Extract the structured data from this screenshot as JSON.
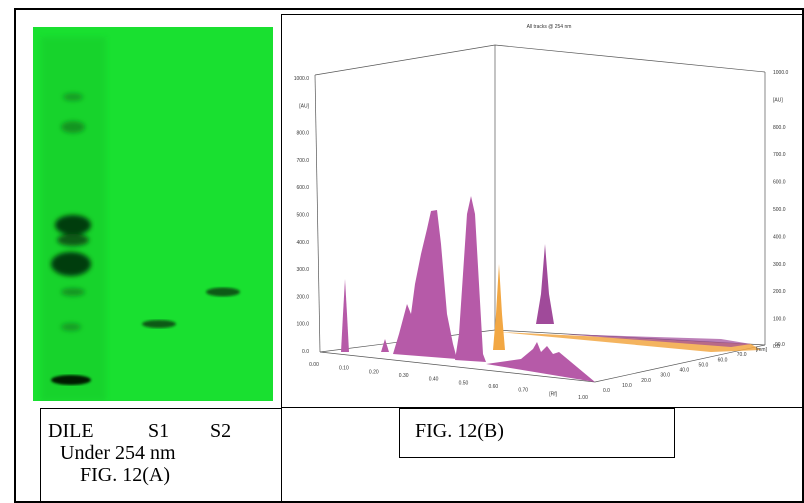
{
  "figure_a": {
    "lanes": [
      "DILE",
      "S1",
      "S2"
    ],
    "caption_lines": [
      "Under 254 nm",
      "FIG. 12(A)"
    ]
  },
  "figure_b": {
    "title": "All tracks @ 254 nm",
    "z_ticks_left": [
      "1000.0",
      "[AU]",
      "800.0",
      "700.0",
      "600.0",
      "500.0",
      "400.0",
      "300.0",
      "200.0",
      "100.0",
      "0.0"
    ],
    "z_ticks_right": [
      "1000.0",
      "[AU]",
      "800.0",
      "700.0",
      "600.0",
      "500.0",
      "400.0",
      "300.0",
      "200.0",
      "100.0",
      "0.0"
    ],
    "x_ticks": [
      "0.00",
      "0.10",
      "0.20",
      "0.30",
      "0.40",
      "0.50",
      "0.60",
      "0.70",
      "[Rf]",
      "1.00"
    ],
    "depth_ticks": [
      "0.0",
      "10.0",
      "20.0",
      "30.0",
      "40.0",
      "50.0",
      "60.0",
      "70.0",
      "[mm]",
      "90.0"
    ],
    "caption": "FIG. 12(B)"
  }
}
